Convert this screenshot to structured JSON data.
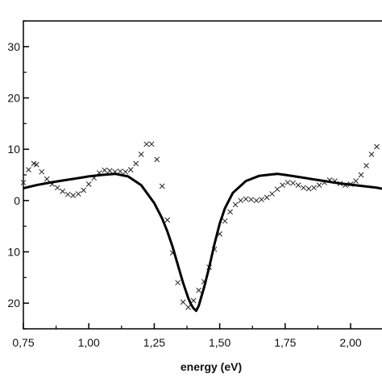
{
  "chart_data": {
    "type": "scatter",
    "xlabel": "energy (eV)",
    "ylabel": "",
    "xlim": [
      0.75,
      2.12
    ],
    "ylim": [
      -25,
      35
    ],
    "grid": false,
    "legend": "none",
    "x_ticks": [
      0.75,
      1.0,
      1.25,
      1.5,
      1.75,
      2.0
    ],
    "x_tick_labels": [
      "0,75",
      "1,00",
      "1,25",
      "1,50",
      "1,75",
      "2,00"
    ],
    "y_ticks": [
      30,
      20,
      10,
      0,
      -10,
      -20
    ],
    "y_tick_labels": [
      "30",
      "20",
      "10",
      "0",
      "10",
      "20"
    ],
    "colors": {
      "fit": "#000000",
      "markers": "#222222",
      "axes": "#000000"
    },
    "series": [
      {
        "style": "markers-x",
        "x": [
          0.75,
          0.77,
          0.79,
          0.8,
          0.82,
          0.84,
          0.86,
          0.88,
          0.9,
          0.92,
          0.94,
          0.96,
          0.98,
          1.0,
          1.02,
          1.04,
          1.06,
          1.08,
          1.1,
          1.12,
          1.14,
          1.16,
          1.18,
          1.2,
          1.22,
          1.24,
          1.26,
          1.28,
          1.3,
          1.32,
          1.34,
          1.36,
          1.38,
          1.4,
          1.42,
          1.44,
          1.46,
          1.48,
          1.5,
          1.52,
          1.54,
          1.56,
          1.58,
          1.6,
          1.62,
          1.64,
          1.66,
          1.68,
          1.7,
          1.72,
          1.74,
          1.76,
          1.78,
          1.8,
          1.82,
          1.84,
          1.86,
          1.88,
          1.9,
          1.92,
          1.94,
          1.96,
          1.98,
          2.0,
          2.02,
          2.04,
          2.06,
          2.08,
          2.1
        ],
        "y": [
          3.5,
          6.0,
          7.2,
          7.0,
          5.6,
          4.2,
          3.2,
          2.5,
          1.8,
          1.2,
          1.0,
          1.3,
          2.0,
          3.2,
          4.4,
          5.4,
          5.9,
          5.8,
          5.6,
          5.7,
          5.6,
          6.0,
          7.2,
          9.0,
          11.0,
          11.0,
          8.0,
          2.8,
          -3.8,
          -10.2,
          -16.0,
          -19.8,
          -20.8,
          -19.5,
          -17.5,
          -15.8,
          -13.0,
          -9.5,
          -6.5,
          -4.0,
          -2.2,
          -0.8,
          0.0,
          0.3,
          0.2,
          0.0,
          0.2,
          0.6,
          1.3,
          2.2,
          3.0,
          3.5,
          3.4,
          3.0,
          2.5,
          2.3,
          2.5,
          3.0,
          3.5,
          4.0,
          3.8,
          3.3,
          3.0,
          3.2,
          3.8,
          5.0,
          6.8,
          9.0,
          10.5
        ]
      },
      {
        "style": "line",
        "x": [
          0.75,
          0.8,
          0.85,
          0.9,
          0.95,
          1.0,
          1.05,
          1.1,
          1.15,
          1.2,
          1.25,
          1.28,
          1.3,
          1.32,
          1.34,
          1.36,
          1.38,
          1.39,
          1.4,
          1.41,
          1.42,
          1.44,
          1.46,
          1.48,
          1.5,
          1.52,
          1.55,
          1.6,
          1.65,
          1.7,
          1.72,
          1.75,
          1.8,
          1.85,
          1.9,
          1.95,
          2.0,
          2.05,
          2.1,
          2.12
        ],
        "y": [
          2.4,
          3.0,
          3.5,
          3.9,
          4.3,
          4.7,
          5.0,
          5.2,
          4.7,
          3.0,
          -0.5,
          -3.5,
          -6.0,
          -9.0,
          -12.5,
          -16.0,
          -19.0,
          -20.2,
          -21.0,
          -21.5,
          -20.5,
          -17.0,
          -13.0,
          -8.5,
          -4.5,
          -1.5,
          1.5,
          3.8,
          4.8,
          5.1,
          5.2,
          5.0,
          4.6,
          4.2,
          3.8,
          3.4,
          3.1,
          2.8,
          2.5,
          2.3
        ]
      }
    ]
  }
}
